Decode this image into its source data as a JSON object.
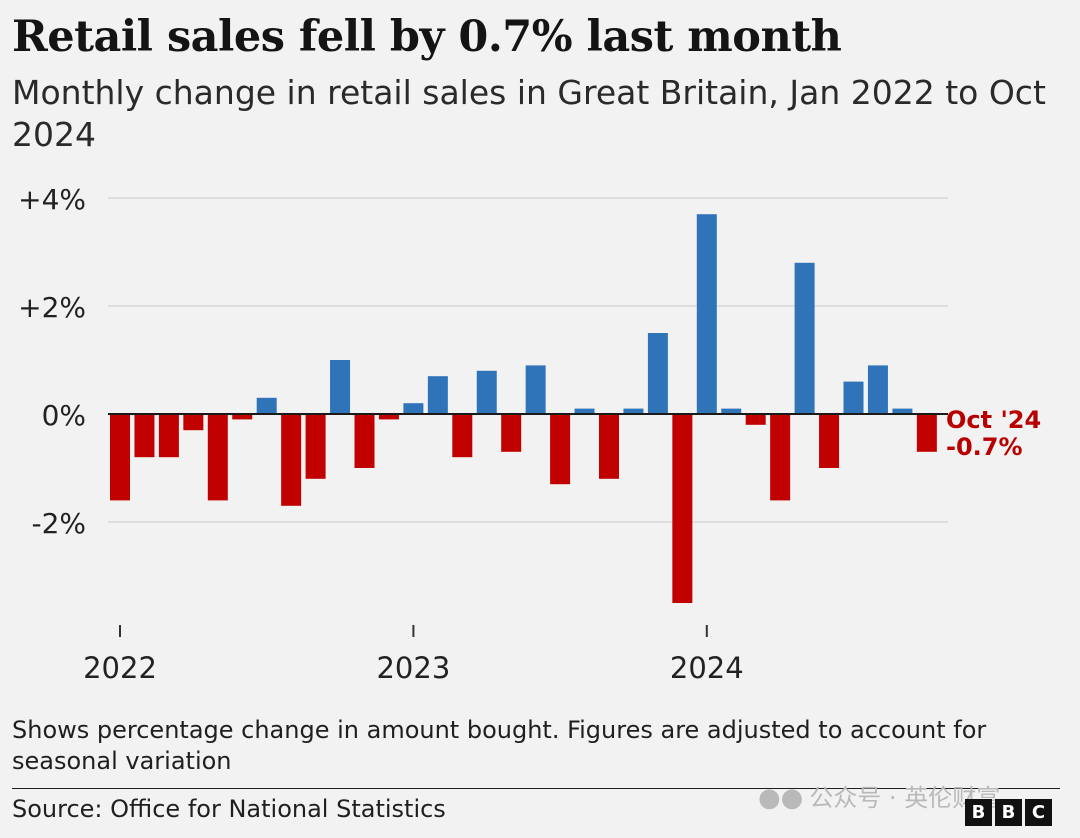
{
  "title": "Retail sales fell by 0.7% last month",
  "subtitle": "Monthly change in retail sales in Great Britain, Jan 2022 to Oct 2024",
  "note": "Shows percentage change in amount bought. Figures are adjusted to account for seasonal variation",
  "source": "Source: Office for National Statistics",
  "watermark": "公众号 · 英伦财富",
  "watermark_icon": "wechat-icon",
  "logo_letters": [
    "B",
    "B",
    "C"
  ],
  "colors": {
    "positive": "#2f74b8",
    "negative": "#c10000",
    "annotation": "#b80000",
    "grid": "#d8d8d8",
    "zero_line": "#1a1a1a"
  },
  "chart_data": {
    "type": "bar",
    "title": "Retail sales fell by 0.7% last month",
    "subtitle": "Monthly change in retail sales in Great Britain, Jan 2022 to Oct 2024",
    "xlabel": "",
    "ylabel": "",
    "ylim": [
      -3.8,
      4.3
    ],
    "grid": true,
    "y_ticks": [
      {
        "value": 4,
        "label": "+4%"
      },
      {
        "value": 2,
        "label": "+2%"
      },
      {
        "value": 0,
        "label": "0%"
      },
      {
        "value": -2,
        "label": "-2%"
      }
    ],
    "x_ticks": [
      {
        "index": 0,
        "label": "2022"
      },
      {
        "index": 12,
        "label": "2023"
      },
      {
        "index": 24,
        "label": "2024"
      }
    ],
    "categories": [
      "Jan 2022",
      "Feb 2022",
      "Mar 2022",
      "Apr 2022",
      "May 2022",
      "Jun 2022",
      "Jul 2022",
      "Aug 2022",
      "Sep 2022",
      "Oct 2022",
      "Nov 2022",
      "Dec 2022",
      "Jan 2023",
      "Feb 2023",
      "Mar 2023",
      "Apr 2023",
      "May 2023",
      "Jun 2023",
      "Jul 2023",
      "Aug 2023",
      "Sep 2023",
      "Oct 2023",
      "Nov 2023",
      "Dec 2023",
      "Jan 2024",
      "Feb 2024",
      "Mar 2024",
      "Apr 2024",
      "May 2024",
      "Jun 2024",
      "Jul 2024",
      "Aug 2024",
      "Sep 2024",
      "Oct 2024"
    ],
    "values": [
      -1.6,
      -0.8,
      -0.8,
      -0.3,
      -1.6,
      -0.1,
      0.3,
      -1.7,
      -1.2,
      1.0,
      -1.0,
      -0.1,
      0.2,
      0.7,
      -0.8,
      0.8,
      -0.7,
      0.9,
      -1.3,
      0.1,
      -1.2,
      0.1,
      1.5,
      -3.5,
      3.7,
      0.1,
      -0.2,
      -1.6,
      2.8,
      -1.0,
      0.6,
      0.9,
      0.1,
      -0.7
    ],
    "annotation": {
      "index": 33,
      "lines": [
        "Oct '24",
        "-0.7%"
      ]
    }
  }
}
